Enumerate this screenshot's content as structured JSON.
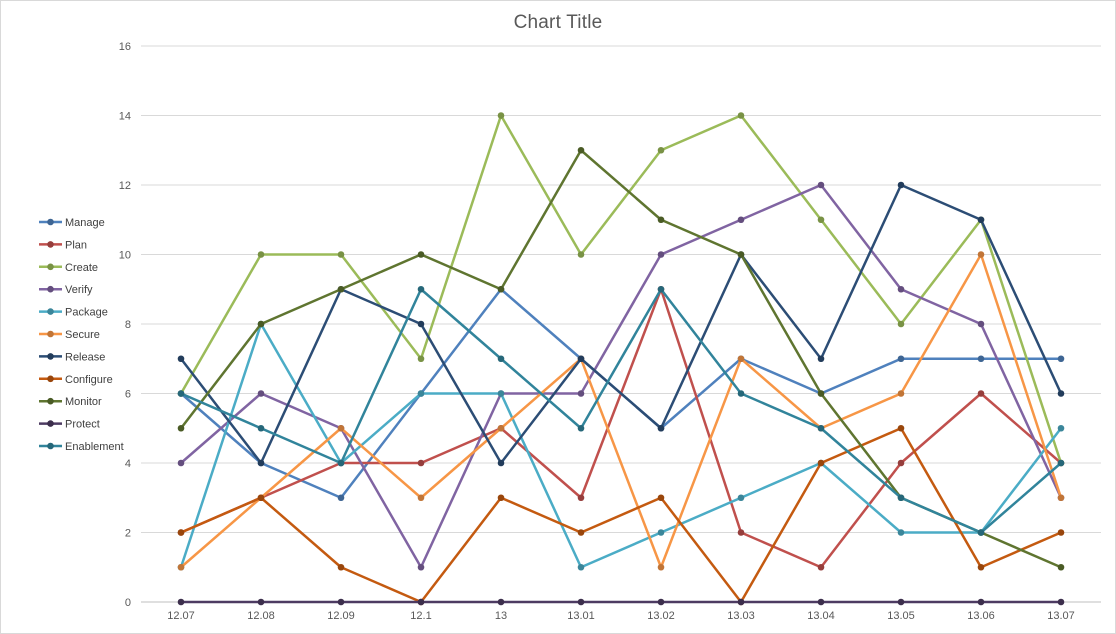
{
  "chart_data": {
    "type": "line",
    "title": "Chart Title",
    "title_color": "#595959",
    "categories": [
      "12.07",
      "12.08",
      "12.09",
      "12.1",
      "13",
      "13.01",
      "13.02",
      "13.03",
      "13.04",
      "13.05",
      "13.06",
      "13.07"
    ],
    "series": [
      {
        "name": "Manage",
        "color": "#4F81BD",
        "values": [
          6,
          4,
          3,
          6,
          9,
          7,
          5,
          7,
          6,
          7,
          7,
          7
        ]
      },
      {
        "name": "Plan",
        "color": "#C0504D",
        "values": [
          2,
          3,
          4,
          4,
          5,
          3,
          9,
          2,
          1,
          4,
          6,
          4
        ]
      },
      {
        "name": "Create",
        "color": "#9BBB59",
        "values": [
          6,
          10,
          10,
          7,
          14,
          10,
          13,
          14,
          11,
          8,
          11,
          4
        ]
      },
      {
        "name": "Verify",
        "color": "#8064A2",
        "values": [
          4,
          6,
          5,
          1,
          6,
          6,
          10,
          11,
          12,
          9,
          8,
          3
        ]
      },
      {
        "name": "Package",
        "color": "#4BACC6",
        "values": [
          1,
          8,
          4,
          6,
          6,
          1,
          2,
          3,
          4,
          2,
          2,
          5
        ]
      },
      {
        "name": "Secure",
        "color": "#F79646",
        "values": [
          1,
          3,
          5,
          3,
          5,
          7,
          1,
          7,
          5,
          6,
          10,
          3
        ]
      },
      {
        "name": "Release",
        "color": "#2C4D75",
        "values": [
          7,
          4,
          9,
          8,
          4,
          7,
          5,
          10,
          7,
          12,
          11,
          6
        ]
      },
      {
        "name": "Configure",
        "color": "#C45A10",
        "values": [
          2,
          3,
          1,
          0,
          3,
          2,
          3,
          0,
          4,
          5,
          1,
          2
        ]
      },
      {
        "name": "Monitor",
        "color": "#5F7530",
        "values": [
          5,
          8,
          9,
          10,
          9,
          13,
          11,
          10,
          6,
          3,
          2,
          1
        ]
      },
      {
        "name": "Protect",
        "color": "#4D3B62",
        "values": [
          0,
          0,
          0,
          0,
          0,
          0,
          0,
          0,
          0,
          0,
          0,
          0
        ]
      },
      {
        "name": "Enablement",
        "color": "#31849B",
        "values": [
          6,
          5,
          4,
          9,
          7,
          5,
          9,
          6,
          5,
          3,
          2,
          4
        ]
      }
    ],
    "ylim": [
      0,
      16
    ],
    "ytick_step": 2,
    "ytick_labels": [
      "0",
      "2",
      "4",
      "6",
      "8",
      "10",
      "12",
      "14",
      "16"
    ],
    "grid": true,
    "grid_color": "#D9D9D9",
    "axis_line_color": "#BFBFBF",
    "axis_label_color": "#595959",
    "legend_position": "left",
    "background_color": "#FFFFFF"
  }
}
